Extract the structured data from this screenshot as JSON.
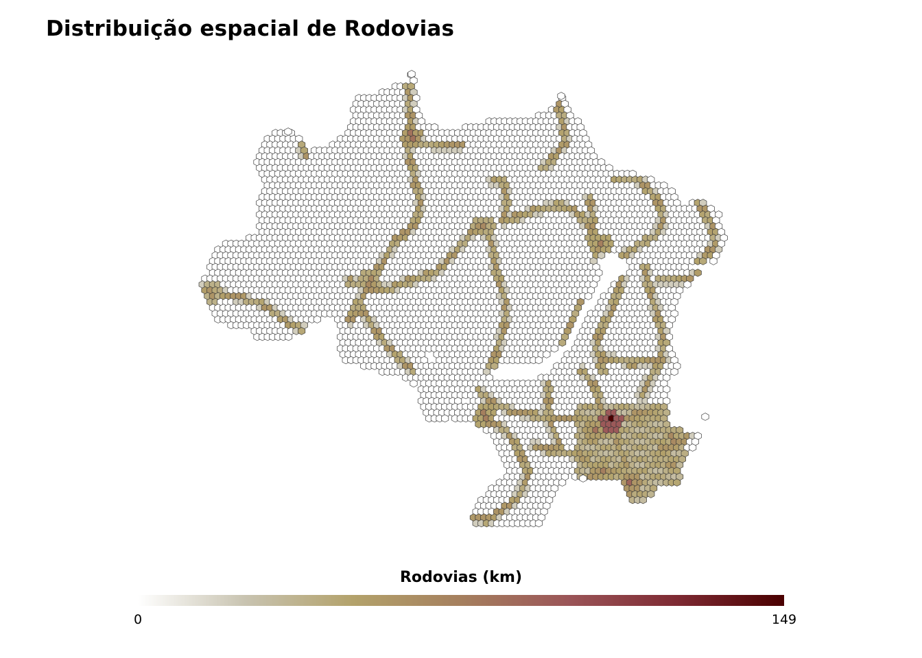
{
  "title": "Distribuição espacial de Rodovias",
  "legend": {
    "title": "Rodovias (km)",
    "min_label": "0",
    "max_label": "149",
    "min": 0,
    "max": 149,
    "colors": [
      "#ffffff",
      "#c8c3b0",
      "#b3a26b",
      "#a57f5e",
      "#9b5558",
      "#7e2a33",
      "#4a0000"
    ]
  },
  "map": {
    "cell_border": "#3a3a3a",
    "fill_empty": "#ffffff"
  }
}
